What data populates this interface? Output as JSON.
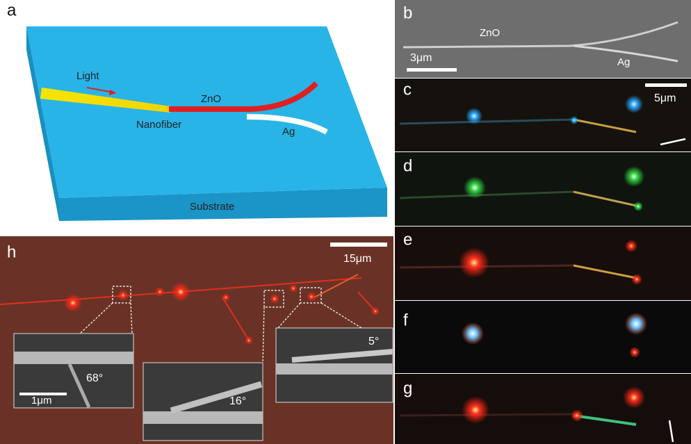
{
  "panel_a": {
    "label": "a",
    "light": "Light",
    "zno": "ZnO",
    "nanofiber": "Nanofiber",
    "ag": "Ag",
    "substrate": "Substrate"
  },
  "panel_b": {
    "label": "b",
    "zno": "ZnO",
    "scale_bar": "3μm",
    "ag": "Ag"
  },
  "panel_c": {
    "label": "c",
    "scale_bar": "5μm"
  },
  "panel_d": {
    "label": "d"
  },
  "panel_e": {
    "label": "e"
  },
  "panel_f": {
    "label": "f"
  },
  "panel_g": {
    "label": "g"
  },
  "panel_h": {
    "label": "h",
    "scale_bar": "15μm",
    "insets": [
      {
        "angle": "68°",
        "scale_bar": "1μm"
      },
      {
        "angle": "16°"
      },
      {
        "angle": "5°"
      }
    ]
  }
}
